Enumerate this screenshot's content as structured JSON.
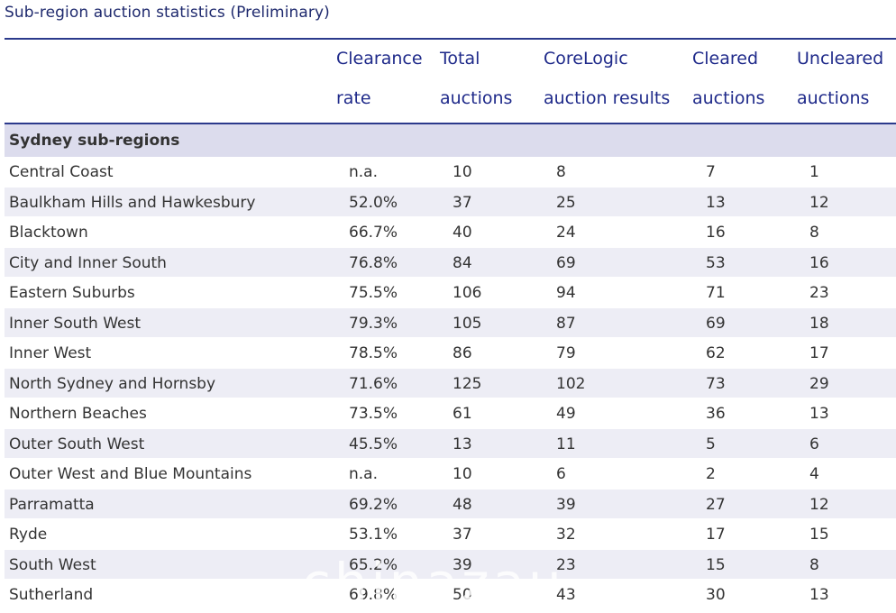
{
  "title": "Sub-region auction statistics (Preliminary)",
  "columns": [
    {
      "line1": "",
      "line2": ""
    },
    {
      "line1": "Clearance",
      "line2": "rate"
    },
    {
      "line1": "Total",
      "line2": "auctions"
    },
    {
      "line1": "CoreLogic",
      "line2": "auction results"
    },
    {
      "line1": "Cleared",
      "line2": "auctions"
    },
    {
      "line1": "Uncleared",
      "line2": "auctions"
    }
  ],
  "section_label": "Sydney sub-regions",
  "rows": [
    {
      "region": "Central Coast",
      "clearance_rate": "n.a.",
      "total": "10",
      "results": "8",
      "cleared": "7",
      "uncleared": "1"
    },
    {
      "region": "Baulkham Hills and Hawkesbury",
      "clearance_rate": "52.0%",
      "total": "37",
      "results": "25",
      "cleared": "13",
      "uncleared": "12"
    },
    {
      "region": "Blacktown",
      "clearance_rate": "66.7%",
      "total": "40",
      "results": "24",
      "cleared": "16",
      "uncleared": "8"
    },
    {
      "region": "City and Inner South",
      "clearance_rate": "76.8%",
      "total": "84",
      "results": "69",
      "cleared": "53",
      "uncleared": "16"
    },
    {
      "region": "Eastern Suburbs",
      "clearance_rate": "75.5%",
      "total": "106",
      "results": "94",
      "cleared": "71",
      "uncleared": "23"
    },
    {
      "region": "Inner South West",
      "clearance_rate": "79.3%",
      "total": "105",
      "results": "87",
      "cleared": "69",
      "uncleared": "18"
    },
    {
      "region": "Inner West",
      "clearance_rate": "78.5%",
      "total": "86",
      "results": "79",
      "cleared": "62",
      "uncleared": "17"
    },
    {
      "region": "North Sydney and Hornsby",
      "clearance_rate": "71.6%",
      "total": "125",
      "results": "102",
      "cleared": "73",
      "uncleared": "29"
    },
    {
      "region": "Northern Beaches",
      "clearance_rate": "73.5%",
      "total": "61",
      "results": "49",
      "cleared": "36",
      "uncleared": "13"
    },
    {
      "region": "Outer South West",
      "clearance_rate": "45.5%",
      "total": "13",
      "results": "11",
      "cleared": "5",
      "uncleared": "6"
    },
    {
      "region": "Outer West and Blue Mountains",
      "clearance_rate": "n.a.",
      "total": "10",
      "results": "6",
      "cleared": "2",
      "uncleared": "4"
    },
    {
      "region": "Parramatta",
      "clearance_rate": "69.2%",
      "total": "48",
      "results": "39",
      "cleared": "27",
      "uncleared": "12"
    },
    {
      "region": "Ryde",
      "clearance_rate": "53.1%",
      "total": "37",
      "results": "32",
      "cleared": "17",
      "uncleared": "15"
    },
    {
      "region": "South West",
      "clearance_rate": "65.2%",
      "total": "39",
      "results": "23",
      "cleared": "15",
      "uncleared": "8"
    },
    {
      "region": "Sutherland",
      "clearance_rate": "69.8%",
      "total": "50",
      "results": "43",
      "cleared": "30",
      "uncleared": "13"
    }
  ],
  "watermark": "chinazau",
  "colors": {
    "title": "#1f2a6e",
    "header_text": "#1f2a8a",
    "rule": "#2b3a8c",
    "section_bg": "#dcdced",
    "alt_row_bg": "#ededf5"
  }
}
